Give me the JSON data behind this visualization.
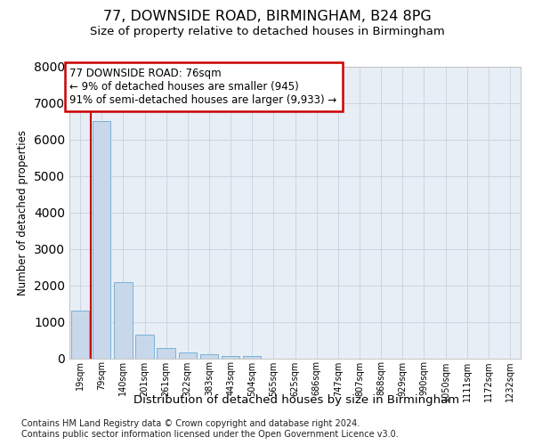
{
  "title1": "77, DOWNSIDE ROAD, BIRMINGHAM, B24 8PG",
  "title2": "Size of property relative to detached houses in Birmingham",
  "xlabel": "Distribution of detached houses by size in Birmingham",
  "ylabel": "Number of detached properties",
  "bar_labels": [
    "19sqm",
    "79sqm",
    "140sqm",
    "201sqm",
    "261sqm",
    "322sqm",
    "383sqm",
    "443sqm",
    "504sqm",
    "565sqm",
    "625sqm",
    "686sqm",
    "747sqm",
    "807sqm",
    "868sqm",
    "929sqm",
    "990sqm",
    "1050sqm",
    "1111sqm",
    "1172sqm",
    "1232sqm"
  ],
  "bar_values": [
    1300,
    6500,
    2100,
    650,
    280,
    150,
    100,
    60,
    50,
    0,
    0,
    0,
    0,
    0,
    0,
    0,
    0,
    0,
    0,
    0,
    0
  ],
  "bar_color": "#c8d8ea",
  "bar_edge_color": "#6aaad4",
  "grid_color": "#ccd5e0",
  "background_color": "#e8eef5",
  "annotation_box_edgecolor": "#cc0000",
  "property_line_color": "#cc0000",
  "annotation_text": "77 DOWNSIDE ROAD: 76sqm\n← 9% of detached houses are smaller (945)\n91% of semi-detached houses are larger (9,933) →",
  "footnote1": "Contains HM Land Registry data © Crown copyright and database right 2024.",
  "footnote2": "Contains public sector information licensed under the Open Government Licence v3.0.",
  "ylim": [
    0,
    8000
  ],
  "title1_fontsize": 11.5,
  "title2_fontsize": 9.5,
  "annot_fontsize": 8.5,
  "tick_fontsize": 7,
  "ylabel_fontsize": 8.5,
  "xlabel_fontsize": 9.5,
  "footnote_fontsize": 7
}
